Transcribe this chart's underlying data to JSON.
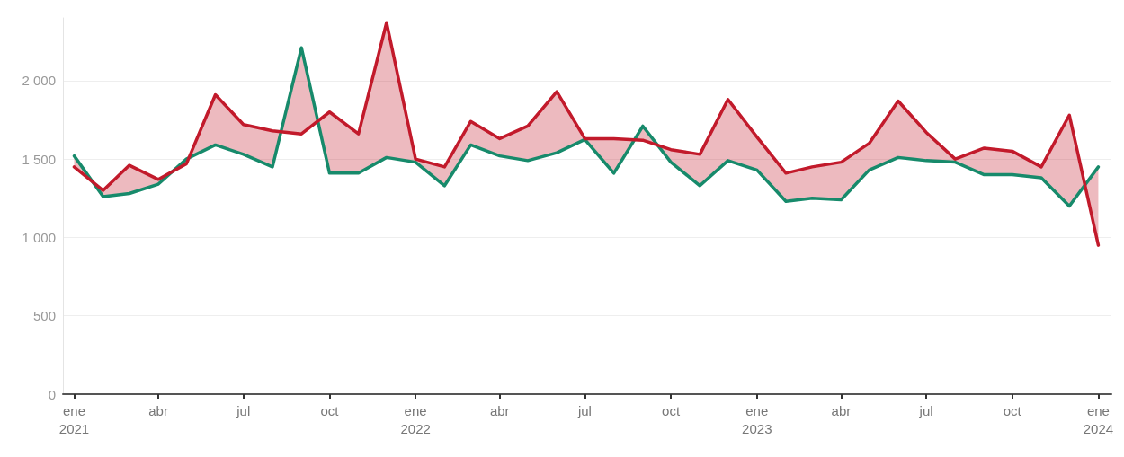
{
  "chart_data": {
    "type": "line",
    "x": [
      "2021-01",
      "2021-02",
      "2021-03",
      "2021-04",
      "2021-05",
      "2021-06",
      "2021-07",
      "2021-08",
      "2021-09",
      "2021-10",
      "2021-11",
      "2021-12",
      "2022-01",
      "2022-02",
      "2022-03",
      "2022-04",
      "2022-05",
      "2022-06",
      "2022-07",
      "2022-08",
      "2022-09",
      "2022-10",
      "2022-11",
      "2022-12",
      "2023-01",
      "2023-02",
      "2023-03",
      "2023-04",
      "2023-05",
      "2023-06",
      "2023-07",
      "2023-08",
      "2023-09",
      "2023-10",
      "2023-11",
      "2023-12",
      "2024-01"
    ],
    "series": [
      {
        "color": "#178a6b",
        "values": [
          1520,
          1260,
          1280,
          1340,
          1500,
          1590,
          1530,
          1450,
          2210,
          1410,
          1410,
          1510,
          1480,
          1330,
          1590,
          1520,
          1490,
          1540,
          1625,
          1410,
          1710,
          1480,
          1330,
          1490,
          1430,
          1230,
          1250,
          1240,
          1430,
          1510,
          1490,
          1480,
          1400,
          1400,
          1380,
          1200,
          1450
        ]
      },
      {
        "color": "#c21a2b",
        "values": [
          1450,
          1300,
          1460,
          1370,
          1470,
          1910,
          1720,
          1680,
          1660,
          1800,
          1660,
          2370,
          1500,
          1450,
          1740,
          1630,
          1710,
          1930,
          1630,
          1630,
          1620,
          1560,
          1530,
          1880,
          1640,
          1410,
          1450,
          1480,
          1600,
          1870,
          1670,
          1500,
          1570,
          1550,
          1450,
          1780,
          950
        ],
        "lower": [
          1520,
          1260,
          1280,
          1340,
          1500,
          1590,
          1530,
          1450,
          2210,
          1410,
          1410,
          1510,
          1480,
          1330,
          1590,
          1520,
          1490,
          1540,
          1625,
          1410,
          1710,
          1480,
          1330,
          1490,
          1430,
          1230,
          1250,
          1240,
          1430,
          1510,
          1490,
          1480,
          1400,
          1400,
          1380,
          1200,
          1450
        ],
        "upper": [
          1450,
          1300,
          1460,
          1370,
          1470,
          1910,
          1720,
          1680,
          1660,
          1800,
          1660,
          2370,
          1500,
          1450,
          1740,
          1630,
          1710,
          1930,
          1630,
          1630,
          1620,
          1560,
          1530,
          1880,
          1640,
          1410,
          1450,
          1480,
          1600,
          1870,
          1670,
          1500,
          1570,
          1550,
          1450,
          1780,
          950
        ]
      }
    ],
    "xlim": [
      "2020-12-20",
      "2024-01-15"
    ],
    "xticks": [
      {
        "value": "2021-01",
        "label": "ene\n2021"
      },
      {
        "value": "2021-04",
        "label": "abr"
      },
      {
        "value": "2021-07",
        "label": "jul"
      },
      {
        "value": "2021-10",
        "label": "oct"
      },
      {
        "value": "2022-01",
        "label": "ene\n2022"
      },
      {
        "value": "2022-04",
        "label": "abr"
      },
      {
        "value": "2022-07",
        "label": "jul"
      },
      {
        "value": "2022-10",
        "label": "oct"
      },
      {
        "value": "2023-01",
        "label": "ene\n2023"
      },
      {
        "value": "2023-04",
        "label": "abr"
      },
      {
        "value": "2023-07",
        "label": "jul"
      },
      {
        "value": "2023-10",
        "label": "oct"
      },
      {
        "value": "2024-01",
        "label": "ene\n2024"
      }
    ],
    "ylim": [
      0,
      2400
    ],
    "yticks": [
      0,
      500,
      {
        "value": 1000,
        "label": "1 000"
      },
      {
        "value": 1500,
        "label": "1 500"
      },
      {
        "value": 2000,
        "label": "2 000"
      }
    ],
    "grid": "y",
    "marker": "none",
    "line_style": "solid"
  }
}
